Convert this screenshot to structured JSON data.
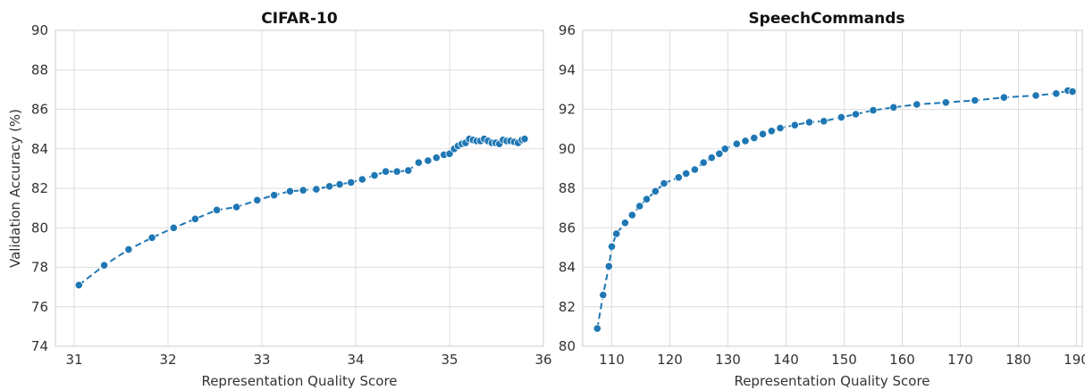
{
  "chart_data": [
    {
      "type": "line",
      "title": "CIFAR-10",
      "xlabel": "Representation Quality Score",
      "ylabel": "Validation Accuracy (%)",
      "xlim": [
        30.8,
        36.0
      ],
      "ylim": [
        74,
        90
      ],
      "xticks": [
        31,
        32,
        33,
        34,
        35,
        36
      ],
      "yticks": [
        74,
        76,
        78,
        80,
        82,
        84,
        86,
        88,
        90
      ],
      "grid": true,
      "series_color": "#1f77b4",
      "line_style": "dashed",
      "marker": "circle",
      "x": [
        31.05,
        31.32,
        31.58,
        31.83,
        32.06,
        32.29,
        32.52,
        32.73,
        32.95,
        33.13,
        33.3,
        33.44,
        33.58,
        33.72,
        33.83,
        33.95,
        34.07,
        34.2,
        34.32,
        34.44,
        34.56,
        34.67,
        34.77,
        34.86,
        34.94,
        35.0,
        35.05,
        35.09,
        35.13,
        35.17,
        35.21,
        35.25,
        35.29,
        35.33,
        35.37,
        35.41,
        35.45,
        35.49,
        35.53,
        35.57,
        35.61,
        35.65,
        35.69,
        35.73,
        35.77,
        35.8
      ],
      "y": [
        77.1,
        78.1,
        78.9,
        79.5,
        80.0,
        80.45,
        80.9,
        81.05,
        81.4,
        81.65,
        81.85,
        81.9,
        81.95,
        82.1,
        82.2,
        82.3,
        82.45,
        82.65,
        82.85,
        82.85,
        82.9,
        83.3,
        83.4,
        83.55,
        83.7,
        83.75,
        84.0,
        84.15,
        84.25,
        84.3,
        84.5,
        84.45,
        84.4,
        84.4,
        84.5,
        84.4,
        84.3,
        84.3,
        84.25,
        84.45,
        84.4,
        84.4,
        84.35,
        84.3,
        84.45,
        84.5
      ]
    },
    {
      "type": "line",
      "title": "SpeechCommands",
      "xlabel": "Representation Quality Score",
      "ylabel": "",
      "xlim": [
        105,
        191
      ],
      "ylim": [
        80,
        96
      ],
      "xticks": [
        110,
        120,
        130,
        140,
        150,
        160,
        170,
        180,
        190
      ],
      "yticks": [
        80,
        82,
        84,
        86,
        88,
        90,
        92,
        94,
        96
      ],
      "grid": true,
      "series_color": "#1f77b4",
      "line_style": "dashed",
      "marker": "circle",
      "x": [
        107.5,
        108.5,
        109.5,
        110.0,
        110.8,
        112.3,
        113.5,
        114.8,
        116.0,
        117.5,
        119.0,
        121.5,
        122.8,
        124.3,
        125.8,
        127.2,
        128.5,
        129.5,
        131.5,
        133.0,
        134.5,
        136.0,
        137.5,
        139.0,
        141.5,
        144.0,
        146.5,
        149.5,
        152.0,
        155.0,
        158.5,
        162.5,
        167.5,
        172.5,
        177.5,
        183.0,
        186.5,
        188.5,
        189.3
      ],
      "y": [
        80.9,
        82.6,
        84.05,
        85.05,
        85.7,
        86.25,
        86.65,
        87.1,
        87.45,
        87.85,
        88.25,
        88.55,
        88.75,
        88.95,
        89.3,
        89.55,
        89.75,
        90.0,
        90.25,
        90.4,
        90.55,
        90.75,
        90.9,
        91.05,
        91.2,
        91.35,
        91.4,
        91.6,
        91.75,
        91.95,
        92.1,
        92.25,
        92.35,
        92.45,
        92.6,
        92.7,
        92.8,
        92.95,
        92.9
      ]
    }
  ]
}
